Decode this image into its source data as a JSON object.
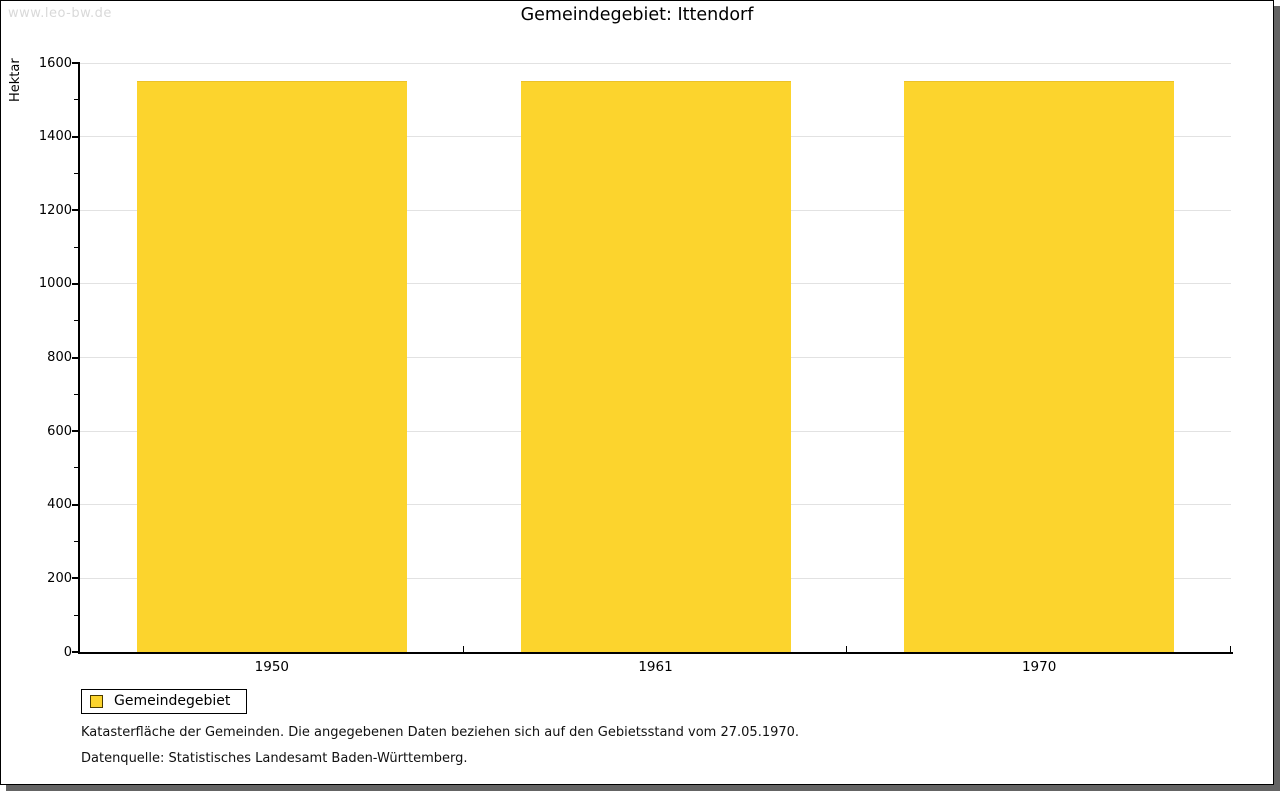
{
  "watermark": "www.leo-bw.de",
  "header": {
    "title": "Gemeindegebiet: Ittendorf"
  },
  "chart_data": {
    "type": "bar",
    "title": "Gemeindegebiet: Ittendorf",
    "categories": [
      "1950",
      "1961",
      "1970"
    ],
    "series": [
      {
        "name": "Gemeindegebiet",
        "values": [
          1550,
          1550,
          1550
        ]
      }
    ],
    "xlabel": "",
    "ylabel": "Hektar",
    "ylim": [
      0,
      1600
    ],
    "ytick_step": 200,
    "ytick_minor_step": 100,
    "grid": "horizontal-major",
    "legend_position": "bottom-left",
    "colors": {
      "bar_fill": "#fcd42d",
      "bar_edge": "#ecc229",
      "gridline": "#e2e2e2",
      "axis": "#000000"
    }
  },
  "legend": {
    "items": [
      {
        "label": "Gemeindegebiet",
        "color": "#fcd42d"
      }
    ]
  },
  "footnotes": [
    "Katasterfläche der Gemeinden. Die angegebenen Daten beziehen sich auf den Gebietsstand vom 27.05.1970.",
    "Datenquelle: Statistisches Landesamt Baden-Württemberg."
  ]
}
